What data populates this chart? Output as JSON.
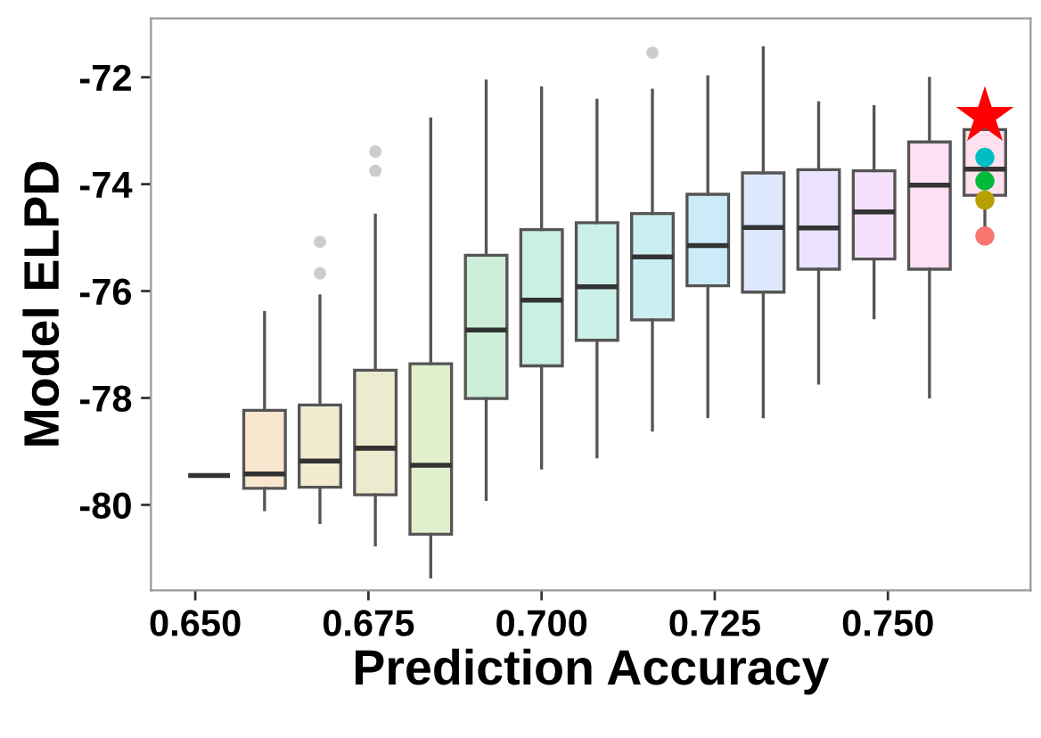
{
  "chart_data": {
    "type": "box",
    "xlabel": "Prediction Accuracy",
    "ylabel": "Model ELPD",
    "xlim": [
      0.6436,
      0.7706
    ],
    "ylim": [
      -81.6,
      -70.9
    ],
    "xticks": [
      {
        "value": 0.65,
        "label": "0.650"
      },
      {
        "value": 0.675,
        "label": "0.675"
      },
      {
        "value": 0.7,
        "label": "0.700"
      },
      {
        "value": 0.725,
        "label": "0.725"
      },
      {
        "value": 0.75,
        "label": "0.750"
      }
    ],
    "yticks": [
      {
        "value": -80,
        "label": "-80"
      },
      {
        "value": -78,
        "label": "-78"
      },
      {
        "value": -76,
        "label": "-76"
      },
      {
        "value": -74,
        "label": "-74"
      },
      {
        "value": -72,
        "label": "-72"
      }
    ],
    "grid": false,
    "legend": false,
    "series": [
      {
        "x": [
          0.652,
          0.66,
          0.668,
          0.676,
          0.684,
          0.692,
          0.7,
          0.708,
          0.716,
          0.724,
          0.732,
          0.74,
          0.748,
          0.756,
          0.764
        ],
        "colors": [
          "#555555",
          "#f9e6cf",
          "#f3ebcf",
          "#ecebcf",
          "#e2efcc",
          "#cdeed8",
          "#caf0e2",
          "#cbf0ea",
          "#cbeef2",
          "#cbebf9",
          "#dde8fd",
          "#ebe3fd",
          "#f5e1fc",
          "#fde0f4",
          "#fde1ee"
        ],
        "boxes": [
          {
            "low": -79.45,
            "q1": -79.45,
            "median": -79.45,
            "q3": -79.45,
            "high": -79.45
          },
          {
            "low": -80.09,
            "q1": -79.69,
            "median": -79.42,
            "q3": -78.23,
            "high": -76.4
          },
          {
            "low": -80.33,
            "q1": -79.67,
            "median": -79.18,
            "q3": -78.13,
            "high": -76.09,
            "outliers": [
              -75.08,
              -75.67
            ]
          },
          {
            "low": -80.75,
            "q1": -79.81,
            "median": -78.94,
            "q3": -77.48,
            "high": -74.58,
            "outliers": [
              -73.39,
              -73.75
            ]
          },
          {
            "low": -81.35,
            "q1": -80.55,
            "median": -79.26,
            "q3": -77.36,
            "high": -72.78
          },
          {
            "low": -79.9,
            "q1": -78.01,
            "median": -76.73,
            "q3": -75.33,
            "high": -72.07
          },
          {
            "low": -79.31,
            "q1": -77.4,
            "median": -76.17,
            "q3": -74.85,
            "high": -72.2
          },
          {
            "low": -79.1,
            "q1": -76.92,
            "median": -75.92,
            "q3": -74.72,
            "high": -72.43
          },
          {
            "low": -78.6,
            "q1": -76.54,
            "median": -75.36,
            "q3": -74.55,
            "high": -72.24,
            "outliers": [
              -71.54
            ]
          },
          {
            "low": -78.35,
            "q1": -75.9,
            "median": -75.15,
            "q3": -74.19,
            "high": -71.99
          },
          {
            "low": -78.35,
            "q1": -76.02,
            "median": -74.81,
            "q3": -73.79,
            "high": -71.45
          },
          {
            "low": -77.72,
            "q1": -75.59,
            "median": -74.82,
            "q3": -73.73,
            "high": -72.48
          },
          {
            "low": -76.5,
            "q1": -75.4,
            "median": -74.52,
            "q3": -73.75,
            "high": -72.55
          },
          {
            "low": -77.98,
            "q1": -75.59,
            "median": -74.02,
            "q3": -73.21,
            "high": -72.02
          },
          {
            "low": -74.97,
            "q1": -74.21,
            "median": -73.72,
            "q3": -72.98,
            "high": -72.98
          }
        ]
      },
      {
        "type": "scatter",
        "x": [
          0.764,
          0.764,
          0.764,
          0.764
        ],
        "values": [
          -73.5,
          -73.94,
          -74.3,
          -74.97
        ],
        "colors": [
          "#00bfc4",
          "#00ba38",
          "#b79f00",
          "#f8766d"
        ],
        "marker": "circle"
      },
      {
        "type": "scatter",
        "x": [
          0.764
        ],
        "values": [
          -72.73
        ],
        "color": "#ff0000",
        "marker": "star"
      }
    ]
  }
}
